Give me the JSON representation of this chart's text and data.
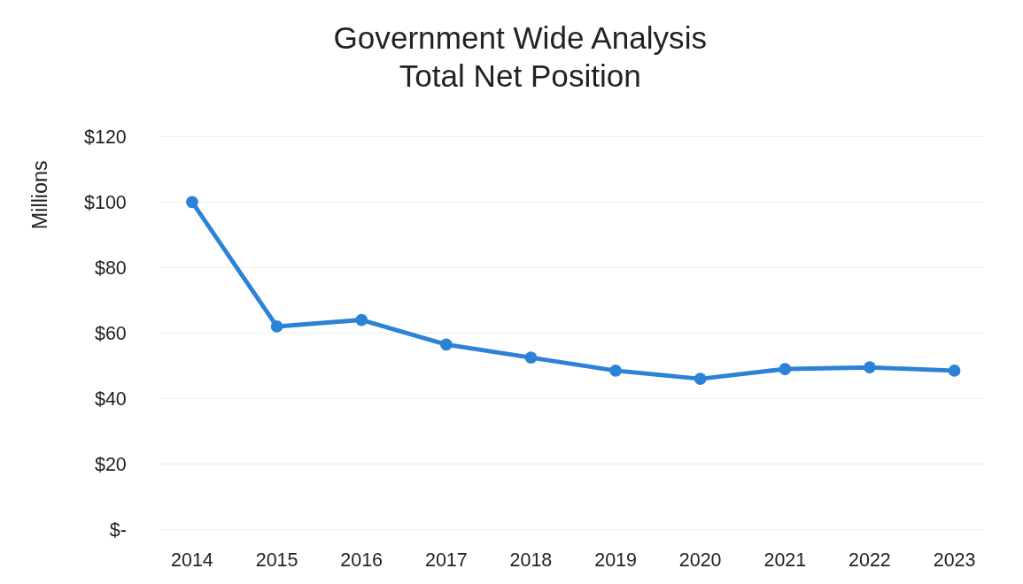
{
  "chart_data": {
    "type": "line",
    "title": "Government Wide Analysis\nTotal Net Position",
    "ylabel": "Millions",
    "categories": [
      "2014",
      "2015",
      "2016",
      "2017",
      "2018",
      "2019",
      "2020",
      "2021",
      "2022",
      "2023"
    ],
    "series": [
      {
        "color": "#2b82d6",
        "values": [
          100,
          62,
          64,
          56.5,
          52.5,
          48.5,
          46,
          49,
          49.5,
          48.5
        ]
      }
    ],
    "ylim": [
      0,
      120
    ],
    "yticks": [
      {
        "value": 0,
        "label": "$-"
      },
      {
        "value": 20,
        "label": "$20"
      },
      {
        "value": 40,
        "label": "$40"
      },
      {
        "value": 60,
        "label": "$60"
      },
      {
        "value": 80,
        "label": "$80"
      },
      {
        "value": 100,
        "label": "$100"
      },
      {
        "value": 120,
        "label": "$120"
      }
    ],
    "grid": "y",
    "marker": "circle",
    "line_style": "solid"
  }
}
